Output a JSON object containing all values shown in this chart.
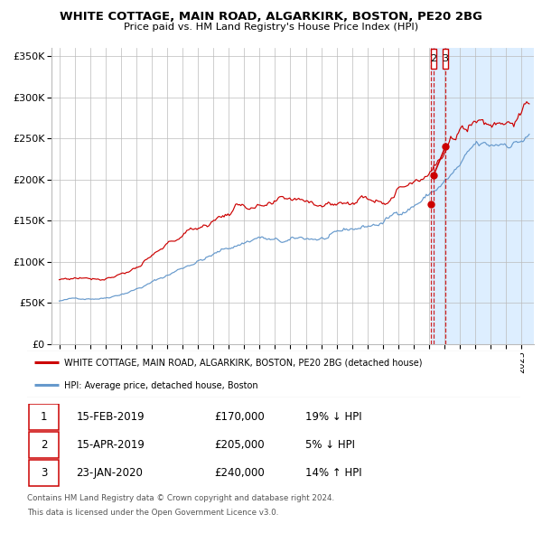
{
  "title": "WHITE COTTAGE, MAIN ROAD, ALGARKIRK, BOSTON, PE20 2BG",
  "subtitle": "Price paid vs. HM Land Registry's House Price Index (HPI)",
  "legend_red": "WHITE COTTAGE, MAIN ROAD, ALGARKIRK, BOSTON, PE20 2BG (detached house)",
  "legend_blue": "HPI: Average price, detached house, Boston",
  "transactions": [
    {
      "num": 1,
      "date": "15-FEB-2019",
      "price": 170000,
      "pct": "19%",
      "dir": "↓",
      "label": "1"
    },
    {
      "num": 2,
      "date": "15-APR-2019",
      "price": 205000,
      "pct": "5%",
      "dir": "↓",
      "label": "2"
    },
    {
      "num": 3,
      "date": "23-JAN-2020",
      "price": 240000,
      "pct": "14%",
      "dir": "↑",
      "label": "3"
    }
  ],
  "footnote1": "Contains HM Land Registry data © Crown copyright and database right 2024.",
  "footnote2": "This data is licensed under the Open Government Licence v3.0.",
  "ylim": [
    0,
    360000
  ],
  "yticks": [
    0,
    50000,
    100000,
    150000,
    200000,
    250000,
    300000,
    350000
  ],
  "red_color": "#cc0000",
  "blue_color": "#6699cc",
  "bg_highlight": "#ddeeff",
  "grid_color": "#bbbbbb",
  "shade_start": 2019.12,
  "shade_end": 2025.8,
  "xmin": 1994.5,
  "xmax": 2025.8
}
